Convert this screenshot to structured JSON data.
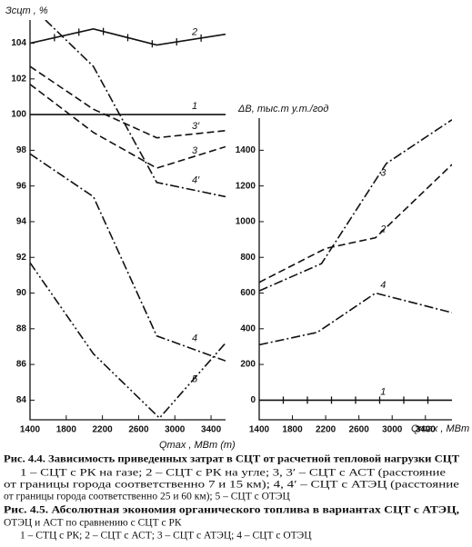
{
  "chart_data": [
    {
      "type": "line",
      "ylabel": "Зсцт , %",
      "xlabel": "Qmax , МВт (т)",
      "xlim": [
        1400,
        3560
      ],
      "ylim": [
        82.9,
        105.3
      ],
      "xticks": [
        1400,
        1800,
        2200,
        2600,
        3000,
        3400
      ],
      "yticks": [
        84,
        86,
        88,
        90,
        92,
        94,
        96,
        98,
        100,
        102,
        104
      ],
      "series": [
        {
          "name": "1",
          "style": "solid",
          "color": "#111111",
          "x": [
            1400,
            3560
          ],
          "values": [
            100,
            100
          ]
        },
        {
          "name": "2",
          "style": "solid-star",
          "color": "#111111",
          "x": [
            1400,
            2100,
            2800,
            3560
          ],
          "values": [
            104.0,
            104.8,
            103.9,
            104.5
          ]
        },
        {
          "name": "3′",
          "style": "dashed",
          "color": "#111111",
          "x": [
            1400,
            2100,
            2800,
            3560
          ],
          "values": [
            102.7,
            100.3,
            98.7,
            99.1
          ]
        },
        {
          "name": "3",
          "style": "dashed",
          "color": "#111111",
          "x": [
            1400,
            2100,
            2800,
            3560
          ],
          "values": [
            101.7,
            99.0,
            97.0,
            98.2
          ]
        },
        {
          "name": "4′",
          "style": "dashdot",
          "color": "#111111",
          "x": [
            1570,
            2100,
            2800,
            3560
          ],
          "values": [
            105.3,
            102.7,
            96.2,
            95.4
          ]
        },
        {
          "name": "4",
          "style": "dashdot",
          "color": "#111111",
          "x": [
            1400,
            2100,
            2800,
            3560
          ],
          "values": [
            97.8,
            95.4,
            87.6,
            86.2
          ]
        },
        {
          "name": "5",
          "style": "dashdotdot",
          "color": "#111111",
          "x": [
            1400,
            2100,
            2830,
            3560
          ],
          "values": [
            91.7,
            86.6,
            83.0,
            87.2
          ]
        }
      ]
    },
    {
      "type": "line",
      "ylabel": "ΔB, тыс.т у.т./год",
      "xlabel": "Qmax , МВт",
      "xlim": [
        1400,
        3720
      ],
      "ylim": [
        -110,
        1580
      ],
      "xticks": [
        1400,
        1800,
        2200,
        2600,
        3000,
        3400
      ],
      "yticks": [
        0,
        200,
        400,
        600,
        800,
        1000,
        1200,
        1400
      ],
      "series": [
        {
          "name": "3",
          "style": "dashdot",
          "color": "#111111",
          "x": [
            1400,
            2150,
            2930,
            3720
          ],
          "values": [
            612,
            765,
            1326,
            1571
          ]
        },
        {
          "name": "2",
          "style": "dashed",
          "color": "#111111",
          "x": [
            1400,
            2200,
            2800,
            3720
          ],
          "values": [
            660,
            850,
            910,
            1320
          ]
        },
        {
          "name": "4",
          "style": "dashdot",
          "color": "#111111",
          "x": [
            1400,
            2100,
            2800,
            3720
          ],
          "values": [
            310,
            380,
            600,
            490
          ]
        },
        {
          "name": "1",
          "style": "solid-star",
          "color": "#111111",
          "x": [
            1400,
            3720
          ],
          "values": [
            0,
            0
          ]
        }
      ]
    }
  ],
  "captions": [
    "Рис. 4.4. Зависимость приведенных затрат в СЦТ от расчетной тепловой нагрузки СЦТ",
    "1 – СЦТ с РК на газе; 2 – СЦТ с РК на угле; 3, 3′ – СЦТ с АСТ (расстояние",
    "от границы города соответственно 7 и 15 км); 4, 4′ – СЦТ с АТЭЦ (расстояние",
    "от границы города соответственно 25 и 60 км); 5 – СЦТ с ОТЭЦ",
    "Рис. 4.5. Абсолютная экономия органического топлива в вариантах СЦТ с АТЭЦ,",
    "ОТЭЦ и АСТ по сравнению с СЦТ с РК",
    "1 – СТЦ с РК; 2 – СЦТ с АСТ; 3 – СЦТ с АТЭЦ; 4 – СЦТ с ОТЭЦ"
  ]
}
